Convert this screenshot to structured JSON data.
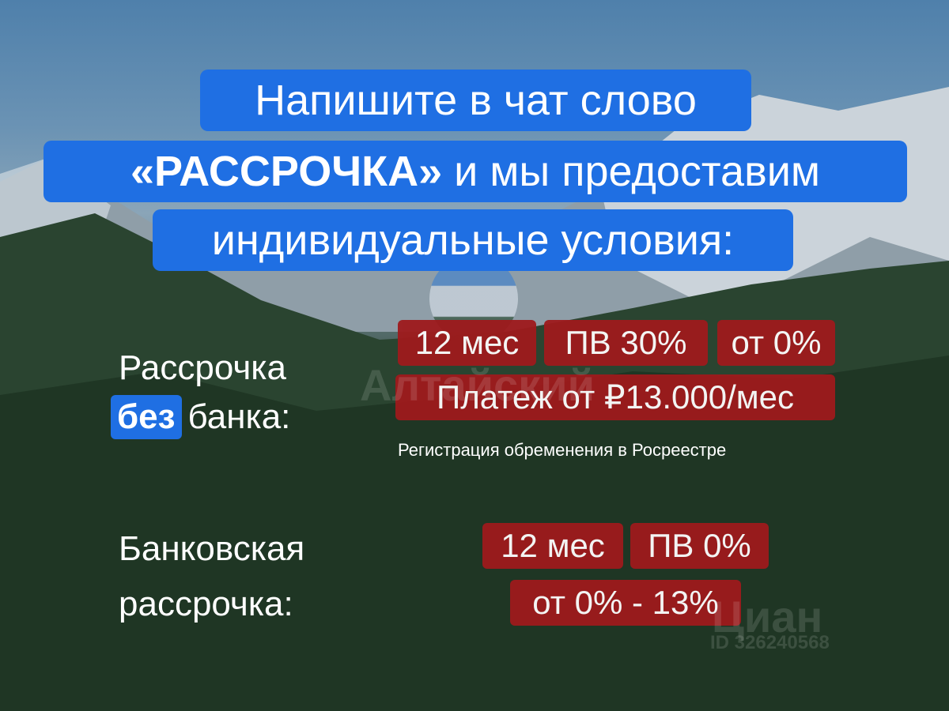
{
  "headline": {
    "line1": "Напишите в чат слово",
    "line2": "«РАССРОЧКА» и мы предоставим",
    "line3": "индивидуальные условия:"
  },
  "no_bank": {
    "label_line1": "Рассрочка",
    "label_highlight": "без",
    "label_rest": "банка:",
    "chips": [
      "12 мес",
      "ПВ 30%",
      "от 0%"
    ],
    "payment": "Платеж от ₽13.000/мес",
    "note": "Регистрация обременения в Росреестре"
  },
  "bank": {
    "label_line1": "Банковская",
    "label_line2": "рассрочка:",
    "chips": [
      "12 мес",
      "ПВ 0%"
    ],
    "rate": "от 0% - 13%"
  },
  "watermarks": {
    "brand": "Алтайский",
    "cian": "Циан",
    "cian_id": "ID 326240568"
  },
  "colors": {
    "blue": "#1f6fe3",
    "red": "#9e1a1c"
  }
}
